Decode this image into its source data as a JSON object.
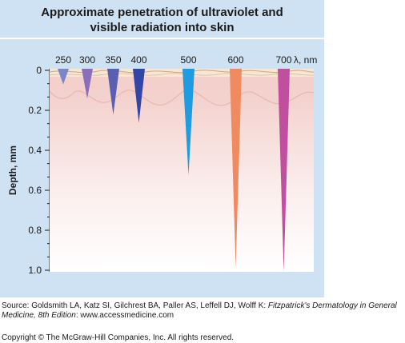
{
  "title_line1": "Approximate penetration of ultraviolet and",
  "title_line2": "visible radiation into skin",
  "y_axis": {
    "label": "Depth, mm",
    "ticks": [
      "0",
      "0.2",
      "0.4",
      "0.6",
      "0.8",
      "1.0"
    ],
    "range": [
      0,
      1.0
    ]
  },
  "wavelength_unit": "λ, nm",
  "colors": {
    "panel": "#cfe2f3",
    "skin_top": "#f1c8c4",
    "dermis_band": "#f3d0cc"
  },
  "wavelengths": [
    {
      "label": "250",
      "depth": 0.07,
      "color": "#7b86c8"
    },
    {
      "label": "300",
      "depth": 0.14,
      "color": "#8a6fb8"
    },
    {
      "label": "350",
      "depth": 0.22,
      "color": "#5a5fb0"
    },
    {
      "label": "400",
      "depth": 0.26,
      "color": "#3346a6"
    },
    {
      "label": "500",
      "depth": 0.52,
      "color": "#1f9be0"
    },
    {
      "label": "600",
      "depth": 0.98,
      "color": "#f08a60"
    },
    {
      "label": "700",
      "depth": 1.0,
      "color": "#c14fa0"
    }
  ],
  "source_prefix": "Source: Goldsmith LA, Katz SI, Gilchrest BA, Paller AS, Leffell DJ, Wolff K: ",
  "source_title": "Fitzpatrick's Dermatology in General Medicine, 8th Edition",
  "source_suffix": ": www.accessmedicine.com",
  "copyright": "Copyright © The McGraw-Hill Companies, Inc. All rights reserved."
}
